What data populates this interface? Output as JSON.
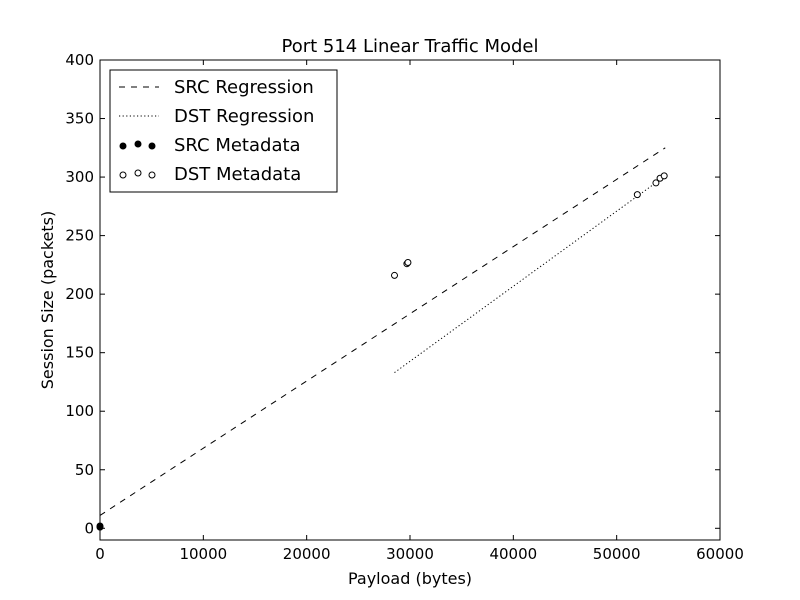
{
  "chart_data": {
    "type": "scatter",
    "title": "Port 514 Linear Traffic Model",
    "xlabel": "Payload (bytes)",
    "ylabel": "Session Size (packets)",
    "xlim": [
      0,
      60000
    ],
    "ylim": [
      -10,
      400
    ],
    "xticks": [
      0,
      10000,
      20000,
      30000,
      40000,
      50000,
      60000
    ],
    "xtick_labels": [
      "0",
      "10000",
      "20000",
      "30000",
      "40000",
      "50000",
      "60000"
    ],
    "yticks": [
      0,
      50,
      100,
      150,
      200,
      250,
      300,
      350,
      400
    ],
    "ytick_labels": [
      "0",
      "50",
      "100",
      "150",
      "200",
      "250",
      "300",
      "350",
      "400"
    ],
    "grid": false,
    "legend_position": "top-left",
    "series": [
      {
        "name": "SRC Regression",
        "kind": "line",
        "style": "dashed",
        "x": [
          0,
          54700
        ],
        "y": [
          11,
          325
        ]
      },
      {
        "name": "DST Regression",
        "kind": "line",
        "style": "dotted",
        "x": [
          28500,
          54700
        ],
        "y": [
          133,
          301
        ]
      },
      {
        "name": "SRC Metadata",
        "kind": "points",
        "marker": "filled",
        "x": [
          0,
          0
        ],
        "y": [
          1,
          2
        ]
      },
      {
        "name": "DST Metadata",
        "kind": "points",
        "marker": "open",
        "x": [
          28500,
          29700,
          29800,
          52000,
          53800,
          54200,
          54600
        ],
        "y": [
          216,
          226,
          227,
          285,
          295,
          299,
          301
        ]
      }
    ]
  }
}
